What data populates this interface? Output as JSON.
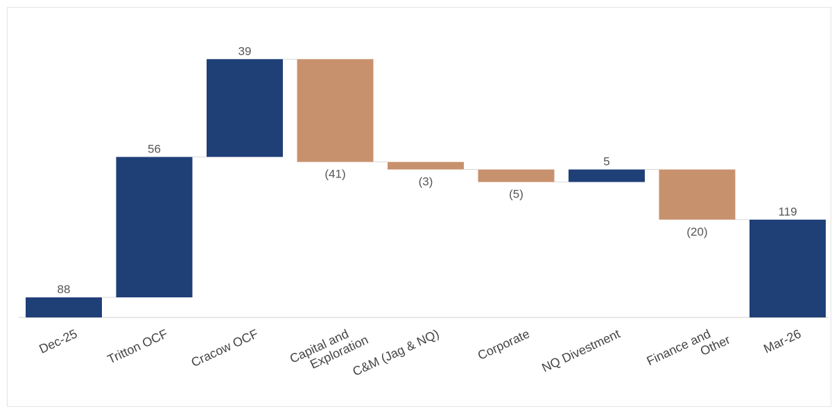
{
  "chart_data": {
    "type": "waterfall",
    "categories": [
      "Dec-25",
      "Tritton OCF",
      "Cracow OCF",
      "Capital and\nExploration",
      "C&M (Jag & NQ)",
      "Corporate",
      "NQ Divestment",
      "Finance and\nOther",
      "Mar-26"
    ],
    "values": [
      88,
      56,
      39,
      -41,
      -3,
      -5,
      5,
      -20,
      119
    ],
    "value_labels": [
      "88",
      "56",
      "39",
      "(41)",
      "(3)",
      "(5)",
      "5",
      "(20)",
      "119"
    ],
    "increase_color": "#1f3f77",
    "decrease_color": "#c8916d",
    "total_color": "#1f3f77",
    "ylim": [
      80,
      190
    ]
  }
}
